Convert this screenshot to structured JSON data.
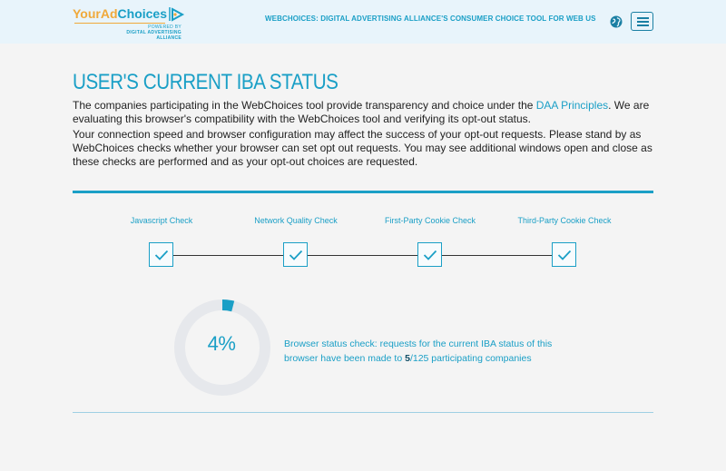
{
  "header": {
    "logo": {
      "your": "Your",
      "ad": "Ad",
      "choices": "Choices",
      "powered": "POWERED BY",
      "daa": "DIGITAL ADVERTISING ALLIANCE"
    },
    "tagline": "WEBCHOICES: DIGITAL ADVERTISING ALLIANCE'S CONSUMER CHOICE TOOL FOR WEB US"
  },
  "main": {
    "title": "USER'S CURRENT IBA STATUS",
    "para1_before": "The companies participating in the WebChoices tool provide transparency and choice under the ",
    "para1_link": "DAA Principles",
    "para1_after": ". We are evaluating this browser's compatibility with the WebChoices tool and verifying its opt-out status.",
    "para2": "Your connection speed and browser configuration may affect the success of your opt-out requests. Please stand by as WebChoices checks whether your browser can set opt out requests. You may see additional windows open and close as these checks are performed and as your opt-out choices are requested."
  },
  "checks": [
    {
      "label": "Javascript Check",
      "done": true
    },
    {
      "label": "Network Quality Check",
      "done": true
    },
    {
      "label": "First-Party Cookie Check",
      "done": true
    },
    {
      "label": "Third-Party Cookie Check",
      "done": true
    }
  ],
  "progress": {
    "percent_text": "4%",
    "fraction": 0.04,
    "status_before": "Browser status check: requests for the current IBA status of this browser have been made to ",
    "done_count": "5",
    "status_total": "/125 participating companies"
  },
  "colors": {
    "accent": "#1a9fc6",
    "ring_track": "#e6e8ec",
    "logo_orange": "#f0a93a"
  }
}
